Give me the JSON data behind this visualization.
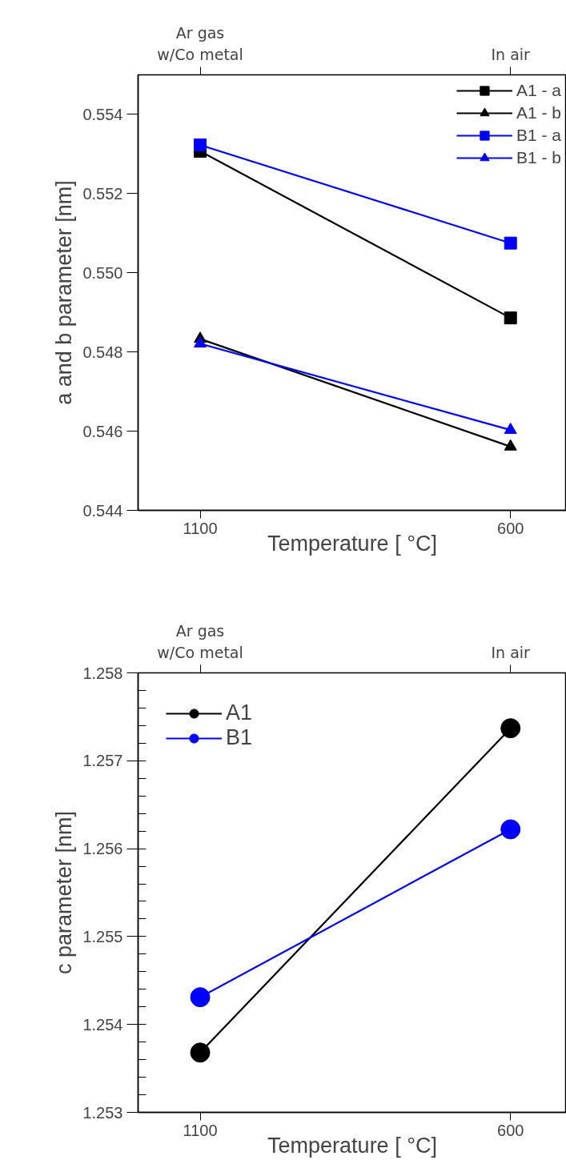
{
  "chart_data": [
    {
      "type": "line",
      "ylabel": "a and b parameter [nm]",
      "xlabel": "Temperature [ °C]",
      "categories": [
        "1100",
        "600"
      ],
      "annotations": [
        {
          "text": "Ar gas\nw/Co metal",
          "x": "1100"
        },
        {
          "text": "In air",
          "x": "600"
        }
      ],
      "ylim": [
        0.544,
        0.555
      ],
      "yticks": [
        0.544,
        0.546,
        0.548,
        {
          "value": 0.55,
          "label": "0.550"
        },
        0.552,
        0.554
      ],
      "grid": false,
      "legend": "top right",
      "series": [
        {
          "name": "A1 - a",
          "color": "#000000",
          "marker": "square",
          "values": [
            0.55307,
            0.54886
          ]
        },
        {
          "name": "A1 - b",
          "color": "#000000",
          "marker": "triangle",
          "values": [
            0.54833,
            0.54561
          ]
        },
        {
          "name": "B1 - a",
          "color": "#0000ff",
          "marker": "square",
          "values": [
            0.55323,
            0.55075
          ]
        },
        {
          "name": "B1 - b",
          "color": "#0000ff",
          "marker": "triangle",
          "values": [
            0.54821,
            0.54603
          ]
        }
      ]
    },
    {
      "type": "line",
      "ylabel": "c parameter [nm]",
      "xlabel": "Temperature [ °C]",
      "categories": [
        "1100",
        "600"
      ],
      "annotations": [
        {
          "text": "Ar gas\nw/Co metal",
          "x": "1100"
        },
        {
          "text": "In air",
          "x": "600"
        }
      ],
      "ylim": [
        1.253,
        1.258
      ],
      "yticks": [
        1.253,
        1.254,
        1.255,
        1.256,
        1.257,
        1.258
      ],
      "grid": false,
      "legend": "top left",
      "marker": "circle",
      "series": [
        {
          "name": "A1",
          "color": "#000000",
          "values": [
            1.25368,
            1.25737
          ]
        },
        {
          "name": "B1",
          "color": "#0000ff",
          "values": [
            1.25431,
            1.25622
          ]
        }
      ]
    }
  ]
}
